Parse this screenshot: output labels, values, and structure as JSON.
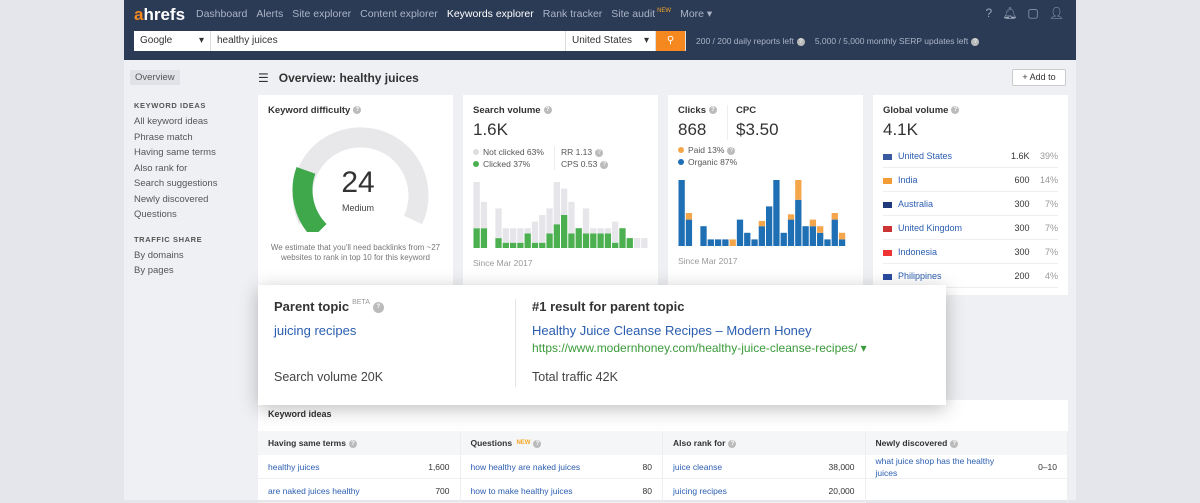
{
  "nav": {
    "logo_a": "a",
    "logo_rest": "hrefs",
    "items": [
      "Dashboard",
      "Alerts",
      "Site explorer",
      "Content explorer",
      "Keywords explorer",
      "Rank tracker",
      "Site audit",
      "More ▾"
    ],
    "new_tag": "NEW",
    "active": "Keywords explorer"
  },
  "search": {
    "engine": "Google",
    "query": "healthy juices",
    "country": "United States",
    "quota_daily": "200 / 200 daily reports left",
    "quota_serp": "5,000 / 5,000 monthly SERP updates left"
  },
  "sidebar": {
    "overview": "Overview",
    "section1": "KEYWORD IDEAS",
    "items1": [
      "All keyword ideas",
      "Phrase match",
      "Having same terms",
      "Also rank for",
      "Search suggestions",
      "Newly discovered",
      "Questions"
    ],
    "section2": "TRAFFIC SHARE",
    "items2": [
      "By domains",
      "By pages"
    ]
  },
  "page": {
    "title": "Overview: healthy juices",
    "add_to": "+ Add to"
  },
  "kd": {
    "title": "Keyword difficulty",
    "value": "24",
    "level": "Medium",
    "note": "We estimate that you'll need backlinks from ~27 websites to rank in top 10 for this keyword",
    "score": 24
  },
  "sv": {
    "title": "Search volume",
    "value": "1.6K",
    "not_clicked": "Not clicked 63%",
    "clicked": "Clicked 37%",
    "rr": "RR 1.13",
    "cps": "CPS 0.53",
    "since": "Since Mar 2017"
  },
  "clicks": {
    "title": "Clicks",
    "value": "868",
    "cpc_title": "CPC",
    "cpc": "$3.50",
    "paid": "Paid 13%",
    "organic": "Organic 87%",
    "since": "Since Mar 2017"
  },
  "colors": {
    "green": "#4caf50",
    "gray": "#e6e6ea",
    "blue": "#1f6fb5",
    "orange": "#f5a54a",
    "nav": "#2b3a55",
    "accent": "#f5891f"
  },
  "chart_data": [
    {
      "type": "bar",
      "stacked": true,
      "series": [
        {
          "name": "Clicked",
          "values": [
            30,
            30,
            0,
            15,
            8,
            8,
            8,
            22,
            8,
            8,
            22,
            36,
            50,
            22,
            30,
            22,
            22,
            22,
            22,
            8,
            30,
            15,
            0,
            0
          ]
        },
        {
          "name": "Not clicked",
          "values": [
            70,
            40,
            0,
            45,
            22,
            22,
            22,
            8,
            32,
            42,
            38,
            64,
            40,
            48,
            0,
            38,
            8,
            8,
            8,
            32,
            0,
            0,
            15,
            15
          ]
        }
      ]
    },
    {
      "type": "bar",
      "stacked": true,
      "series": [
        {
          "name": "Organic",
          "values": [
            100,
            40,
            0,
            30,
            10,
            10,
            10,
            0,
            40,
            20,
            10,
            30,
            60,
            100,
            20,
            40,
            70,
            30,
            30,
            20,
            10,
            40,
            10,
            0
          ]
        },
        {
          "name": "Paid",
          "values": [
            0,
            10,
            0,
            0,
            0,
            0,
            0,
            10,
            0,
            0,
            0,
            8,
            0,
            0,
            0,
            8,
            30,
            0,
            10,
            10,
            0,
            10,
            10,
            0
          ]
        }
      ]
    }
  ],
  "global": {
    "title": "Global volume",
    "value": "4.1K",
    "rows": [
      {
        "country": "United States",
        "vol": "1.6K",
        "pct": "39%",
        "flag": "#3a5aa0"
      },
      {
        "country": "India",
        "vol": "600",
        "pct": "14%",
        "flag": "#f39c36"
      },
      {
        "country": "Australia",
        "vol": "300",
        "pct": "7%",
        "flag": "#1e3a7a"
      },
      {
        "country": "United Kingdom",
        "vol": "300",
        "pct": "7%",
        "flag": "#c33"
      },
      {
        "country": "Indonesia",
        "vol": "300",
        "pct": "7%",
        "flag": "#e33"
      },
      {
        "country": "Philippines",
        "vol": "200",
        "pct": "4%",
        "flag": "#2a4aa0"
      }
    ]
  },
  "parent": {
    "title": "Parent topic",
    "beta": "BETA",
    "topic": "juicing recipes",
    "volume": "Search volume 20K",
    "result_title": "#1 result for parent topic",
    "result_link": "Healthy Juice Cleanse Recipes – Modern Honey",
    "result_url": "https://www.modernhoney.com/healthy-juice-cleanse-recipes/ ▾",
    "traffic": "Total traffic 42K"
  },
  "ideas": {
    "title": "Keyword ideas",
    "columns": [
      {
        "header": "Having same terms",
        "new": "",
        "rows": [
          {
            "k": "healthy juices",
            "v": "1,600"
          },
          {
            "k": "are naked juices healthy",
            "v": "700"
          }
        ]
      },
      {
        "header": "Questions",
        "new": "NEW",
        "rows": [
          {
            "k": "how healthy are naked juices",
            "v": "80"
          },
          {
            "k": "how to make healthy juices",
            "v": "80"
          }
        ]
      },
      {
        "header": "Also rank for",
        "new": "",
        "rows": [
          {
            "k": "juice cleanse",
            "v": "38,000"
          },
          {
            "k": "juicing recipes",
            "v": "20,000"
          }
        ]
      },
      {
        "header": "Newly discovered",
        "new": "",
        "rows": [
          {
            "k": "what juice shop has the healthy juices",
            "v": "0–10"
          }
        ]
      }
    ]
  }
}
